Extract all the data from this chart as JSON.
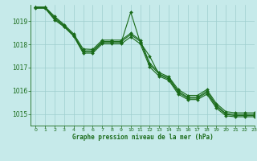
{
  "title": "Graphe pression niveau de la mer (hPa)",
  "xlim": [
    -0.5,
    23
  ],
  "ylim": [
    1014.5,
    1019.7
  ],
  "yticks": [
    1015,
    1016,
    1017,
    1018,
    1019
  ],
  "xticks": [
    0,
    1,
    2,
    3,
    4,
    5,
    6,
    7,
    8,
    9,
    10,
    11,
    12,
    13,
    14,
    15,
    16,
    17,
    18,
    19,
    20,
    21,
    22,
    23
  ],
  "background_color": "#c6eaea",
  "grid_color": "#9ecece",
  "line_color": "#1a6b1a",
  "series": [
    [
      1019.6,
      1019.6,
      1019.2,
      1018.85,
      1018.45,
      1017.8,
      1017.78,
      1018.18,
      1018.18,
      1018.18,
      1018.48,
      1018.18,
      1017.18,
      1016.78,
      1016.6,
      1016.05,
      1015.8,
      1015.8,
      1016.05,
      1015.45,
      1015.1,
      1015.05,
      1015.05,
      1015.05
    ],
    [
      1019.6,
      1019.6,
      1019.15,
      1018.8,
      1018.4,
      1017.72,
      1017.72,
      1018.12,
      1018.12,
      1018.12,
      1018.42,
      1018.12,
      1017.12,
      1016.72,
      1016.55,
      1015.98,
      1015.72,
      1015.72,
      1015.98,
      1015.38,
      1015.02,
      1014.98,
      1014.98,
      1014.98
    ],
    [
      1019.58,
      1019.58,
      1019.1,
      1018.78,
      1018.38,
      1017.68,
      1017.68,
      1018.08,
      1018.08,
      1018.08,
      1019.38,
      1018.08,
      1017.48,
      1016.68,
      1016.5,
      1015.92,
      1015.68,
      1015.68,
      1015.92,
      1015.32,
      1014.98,
      1014.93,
      1014.93,
      1014.93
    ],
    [
      1019.55,
      1019.55,
      1019.05,
      1018.75,
      1018.35,
      1017.62,
      1017.62,
      1018.02,
      1018.02,
      1018.02,
      1018.32,
      1018.02,
      1017.02,
      1016.62,
      1016.45,
      1015.85,
      1015.62,
      1015.62,
      1015.85,
      1015.25,
      1014.92,
      1014.88,
      1014.88,
      1014.88
    ]
  ],
  "figsize": [
    3.2,
    2.0
  ],
  "dpi": 100
}
